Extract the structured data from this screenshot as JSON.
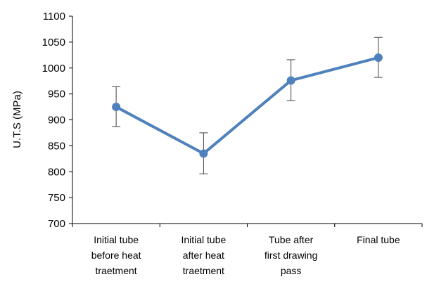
{
  "chart_data": {
    "type": "line",
    "title": "",
    "xlabel": "",
    "ylabel": "U.T.S (MPa)",
    "ylim": [
      700,
      1100
    ],
    "yticks": [
      "700",
      "750",
      "800",
      "850",
      "900",
      "950",
      "1000",
      "1050",
      "1100"
    ],
    "categories": [
      [
        "Initial tube",
        "before heat",
        "traetment"
      ],
      [
        "Initial tube",
        "after heat",
        "traetment"
      ],
      [
        "Tube after",
        "first drawing",
        "pass"
      ],
      [
        "Final tube"
      ]
    ],
    "series": [
      {
        "values": [
          925,
          835,
          976,
          1020
        ],
        "error_low": [
          887,
          796,
          937,
          982
        ],
        "error_high": [
          964,
          875,
          1016,
          1059
        ]
      }
    ],
    "grid": false,
    "legend": "none",
    "line_color": "#4F81BD",
    "axis_color": "#000000",
    "errorbar_color": "#404040"
  }
}
